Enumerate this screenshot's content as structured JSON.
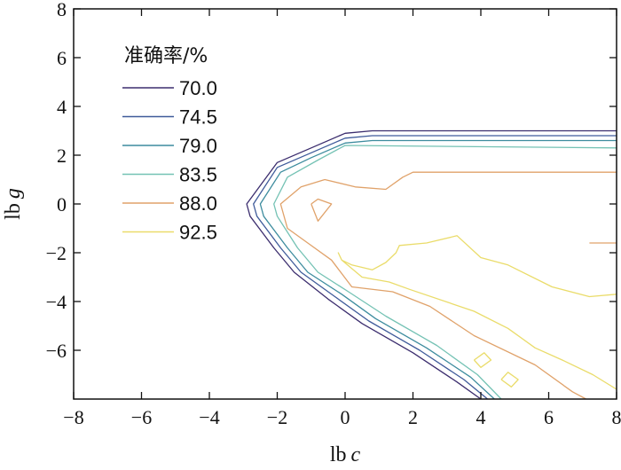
{
  "chart_data": {
    "type": "contour",
    "title": "",
    "xlabel_main": "lb",
    "xlabel_var": "c",
    "ylabel_main": "lb",
    "ylabel_var": "g",
    "xlim": [
      -8,
      8
    ],
    "ylim": [
      -8,
      8
    ],
    "x_ticks": [
      -8,
      -6,
      -4,
      -2,
      0,
      2,
      4,
      6,
      8
    ],
    "y_ticks": [
      8,
      6,
      4,
      2,
      0,
      -2,
      -4,
      -6
    ],
    "x_tick_labels": [
      "−8",
      "−6",
      "−4",
      "−2",
      "0",
      "2",
      "4",
      "6",
      "8"
    ],
    "y_tick_labels": [
      "8",
      "6",
      "4",
      "2",
      "0",
      "−2",
      "−4",
      "−6"
    ],
    "grid": false,
    "legend": {
      "title": "准确率/%",
      "placement": "top-left"
    },
    "series": [
      {
        "name": "70.0",
        "color": "#3b2d6e",
        "lines": [
          [
            [
              8.0,
              3.0
            ],
            [
              0.8,
              3.0
            ],
            [
              0.0,
              2.9
            ],
            [
              -1.0,
              2.3
            ],
            [
              -2.0,
              1.7
            ],
            [
              -2.9,
              0.0
            ],
            [
              -2.8,
              -0.5
            ],
            [
              -2.1,
              -1.8
            ],
            [
              -1.5,
              -2.8
            ],
            [
              -0.5,
              -3.9
            ],
            [
              0.5,
              -4.9
            ],
            [
              2.0,
              -6.1
            ],
            [
              3.3,
              -7.3
            ],
            [
              4.0,
              -8.0
            ]
          ]
        ]
      },
      {
        "name": "74.5",
        "color": "#3f5b9a",
        "lines": [
          [
            [
              8.0,
              2.8
            ],
            [
              0.8,
              2.8
            ],
            [
              0.0,
              2.7
            ],
            [
              -1.0,
              2.1
            ],
            [
              -2.0,
              1.5
            ],
            [
              -2.7,
              0.0
            ],
            [
              -2.6,
              -0.5
            ],
            [
              -1.9,
              -1.8
            ],
            [
              -1.3,
              -2.8
            ],
            [
              -0.3,
              -3.8
            ],
            [
              0.7,
              -4.8
            ],
            [
              2.2,
              -6.0
            ],
            [
              3.5,
              -7.2
            ],
            [
              4.2,
              -8.0
            ]
          ]
        ]
      },
      {
        "name": "79.0",
        "color": "#3d8c9e",
        "lines": [
          [
            [
              8.0,
              2.6
            ],
            [
              0.8,
              2.6
            ],
            [
              0.0,
              2.5
            ],
            [
              -1.0,
              1.9
            ],
            [
              -1.9,
              1.3
            ],
            [
              -2.5,
              0.0
            ],
            [
              -2.4,
              -0.5
            ],
            [
              -1.7,
              -1.8
            ],
            [
              -1.1,
              -2.8
            ],
            [
              -0.1,
              -3.7
            ],
            [
              0.9,
              -4.7
            ],
            [
              2.4,
              -5.9
            ],
            [
              3.7,
              -7.1
            ],
            [
              4.4,
              -8.0
            ]
          ]
        ]
      },
      {
        "name": "83.5",
        "color": "#74c2b4",
        "lines": [
          [
            [
              8.0,
              2.3
            ],
            [
              0.0,
              2.4
            ],
            [
              -0.8,
              1.8
            ],
            [
              -1.7,
              1.1
            ],
            [
              -2.1,
              0.0
            ],
            [
              -2.0,
              -0.5
            ],
            [
              -1.4,
              -1.8
            ],
            [
              -0.8,
              -2.8
            ],
            [
              0.1,
              -3.6
            ],
            [
              1.2,
              -4.6
            ],
            [
              2.7,
              -5.8
            ],
            [
              3.9,
              -7.0
            ],
            [
              4.6,
              -8.0
            ]
          ]
        ]
      },
      {
        "name": "88.0",
        "color": "#e0a26a",
        "lines": [
          [
            [
              8.0,
              1.3
            ],
            [
              2.0,
              1.3
            ],
            [
              1.7,
              1.1
            ],
            [
              1.2,
              0.6
            ],
            [
              0.3,
              0.7
            ],
            [
              -0.6,
              1.0
            ],
            [
              -1.3,
              0.7
            ],
            [
              -1.9,
              0.0
            ],
            [
              -1.7,
              -1.0
            ],
            [
              -1.1,
              -1.6
            ],
            [
              -0.4,
              -2.3
            ],
            [
              0.2,
              -3.4
            ],
            [
              1.4,
              -3.6
            ],
            [
              2.5,
              -4.2
            ],
            [
              3.8,
              -5.4
            ],
            [
              5.6,
              -6.6
            ],
            [
              6.7,
              -7.7
            ],
            [
              7.1,
              -8.0
            ]
          ],
          [
            [
              -1.0,
              0.0
            ],
            [
              -0.8,
              -0.7
            ],
            [
              -0.4,
              0.0
            ],
            [
              -0.8,
              0.2
            ],
            [
              -1.0,
              0.0
            ]
          ],
          [
            [
              7.2,
              -1.6
            ],
            [
              8.0,
              -1.6
            ]
          ]
        ]
      },
      {
        "name": "92.5",
        "color": "#eadc6a",
        "lines": [
          [
            [
              8.0,
              -3.7
            ],
            [
              7.2,
              -3.8
            ],
            [
              6.1,
              -3.4
            ],
            [
              4.8,
              -2.5
            ],
            [
              4.0,
              -2.2
            ],
            [
              3.3,
              -1.3
            ],
            [
              2.4,
              -1.6
            ],
            [
              1.6,
              -1.7
            ],
            [
              1.5,
              -2.0
            ],
            [
              1.2,
              -2.4
            ],
            [
              0.8,
              -2.7
            ],
            [
              0.2,
              -2.5
            ],
            [
              -0.1,
              -2.3
            ],
            [
              -0.2,
              -2.0
            ],
            [
              -0.1,
              -2.3
            ],
            [
              0.5,
              -3.0
            ],
            [
              1.3,
              -3.2
            ],
            [
              1.9,
              -3.5
            ],
            [
              3.8,
              -4.4
            ],
            [
              4.8,
              -5.1
            ],
            [
              5.6,
              -5.9
            ],
            [
              6.4,
              -6.4
            ],
            [
              7.3,
              -7.0
            ],
            [
              8.0,
              -7.6
            ]
          ],
          [
            [
              3.8,
              -6.4
            ],
            [
              4.1,
              -6.1
            ],
            [
              4.3,
              -6.4
            ],
            [
              4.0,
              -6.7
            ],
            [
              3.8,
              -6.4
            ]
          ],
          [
            [
              4.6,
              -7.2
            ],
            [
              4.8,
              -6.9
            ],
            [
              5.1,
              -7.2
            ],
            [
              4.9,
              -7.5
            ],
            [
              4.6,
              -7.2
            ]
          ]
        ]
      }
    ]
  }
}
